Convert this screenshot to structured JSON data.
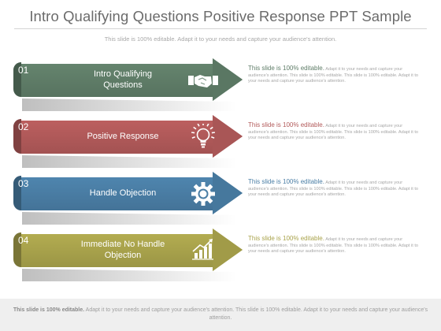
{
  "title": "Intro Qualifying Questions Positive Response PPT Sample",
  "subtitle": "This slide is 100% editable. Adapt it to your needs and capture your audience's attention.",
  "steps": [
    {
      "number": "01",
      "label_line1": "Intro Qualifying",
      "label_line2": "Questions",
      "icon": "handshake-icon",
      "color": "#5f7d68",
      "desc_head": "This slide is 100% editable.",
      "desc_body": "Adapt it to your needs and capture your audience's attention. This slide is 100% editable. This slide is 100% editable. Adapt it to your needs and capture your audience's attention."
    },
    {
      "number": "02",
      "label_line1": "Positive Response",
      "label_line2": "",
      "icon": "lightbulb-icon",
      "color": "#b25a5a",
      "desc_head": "This slide is 100% editable.",
      "desc_body": "Adapt it to your needs and capture your audience's attention. This slide is 100% editable. This slide is 100% editable. Adapt it to your needs and capture your audience's attention."
    },
    {
      "number": "03",
      "label_line1": "Handle  Objection",
      "label_line2": "",
      "icon": "gear-icon",
      "color": "#4a7ea5",
      "desc_head": "This slide is 100% editable.",
      "desc_body": "Adapt it to your needs and capture your audience's attention. This slide is 100% editable. This slide is 100% editable. Adapt it to your needs and capture your audience's attention."
    },
    {
      "number": "04",
      "label_line1": "Immediate  No Handle",
      "label_line2": "Objection",
      "icon": "growth-chart-icon",
      "color": "#a9a34c",
      "desc_head": "This slide is 100% editable.",
      "desc_body": "Adapt it to your needs and capture your audience's attention. This slide is 100% editable. This slide is 100% editable. Adapt it to your needs and capture your audience's attention."
    }
  ],
  "footer": {
    "bold": "This slide is 100% editable.",
    "text": "Adapt it to your needs and capture your audience's attention. This slide is 100% editable. Adapt it to your needs and capture your audience's attention."
  }
}
